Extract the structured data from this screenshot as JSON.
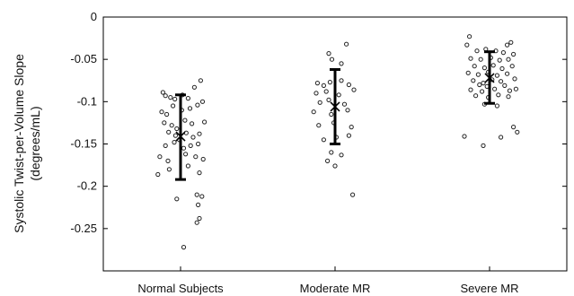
{
  "chart_data": {
    "type": "scatter",
    "title": "",
    "ylabel_line1": "Systolic Twist-per-Volume Slope",
    "ylabel_line2": "(degrees/mL)",
    "xlabel": "",
    "categories": [
      "Normal Subjects",
      "Moderate MR",
      "Severe MR"
    ],
    "ylim": [
      -0.3,
      0
    ],
    "yticks": [
      0,
      -0.05,
      -0.1,
      -0.15,
      -0.2,
      -0.25
    ],
    "ytick_labels": [
      "0",
      "-0.05",
      "-0.1",
      "-0.15",
      "-0.2",
      "-0.25"
    ],
    "grid": false,
    "groups": [
      {
        "category": "Normal Subjects",
        "mean": -0.141,
        "error_low": -0.192,
        "error_high": -0.092,
        "points": [
          [
            -0.28,
            -0.089
          ],
          [
            -0.24,
            -0.093
          ],
          [
            -0.16,
            -0.095
          ],
          [
            -0.09,
            -0.097
          ],
          [
            0.03,
            -0.092
          ],
          [
            0.12,
            -0.096
          ],
          [
            0.22,
            -0.083
          ],
          [
            0.32,
            -0.075
          ],
          [
            -0.3,
            -0.112
          ],
          [
            -0.22,
            -0.115
          ],
          [
            -0.12,
            -0.105
          ],
          [
            0.02,
            -0.11
          ],
          [
            0.15,
            -0.108
          ],
          [
            0.27,
            -0.104
          ],
          [
            0.35,
            -0.1
          ],
          [
            -0.26,
            -0.125
          ],
          [
            -0.14,
            -0.128
          ],
          [
            -0.06,
            -0.132
          ],
          [
            0.07,
            -0.122
          ],
          [
            0.18,
            -0.126
          ],
          [
            0.38,
            -0.124
          ],
          [
            -0.19,
            -0.136
          ],
          [
            -0.08,
            -0.14
          ],
          [
            -0.02,
            -0.145
          ],
          [
            0.09,
            -0.137
          ],
          [
            0.2,
            -0.142
          ],
          [
            0.3,
            -0.138
          ],
          [
            -0.24,
            -0.152
          ],
          [
            -0.1,
            -0.148
          ],
          [
            0.05,
            -0.155
          ],
          [
            0.16,
            -0.152
          ],
          [
            0.28,
            -0.15
          ],
          [
            -0.33,
            -0.165
          ],
          [
            -0.2,
            -0.17
          ],
          [
            0.08,
            -0.162
          ],
          [
            0.24,
            -0.165
          ],
          [
            0.36,
            -0.168
          ],
          [
            -0.36,
            -0.186
          ],
          [
            -0.18,
            -0.18
          ],
          [
            0.12,
            -0.176
          ],
          [
            0.3,
            -0.184
          ],
          [
            -0.06,
            -0.215
          ],
          [
            0.26,
            -0.21
          ],
          [
            0.34,
            -0.212
          ],
          [
            0.28,
            -0.222
          ],
          [
            0.3,
            -0.238
          ],
          [
            0.26,
            -0.243
          ],
          [
            0.05,
            -0.272
          ]
        ]
      },
      {
        "category": "Moderate MR",
        "mean": -0.106,
        "error_low": -0.15,
        "error_high": -0.062,
        "points": [
          [
            -0.1,
            -0.043
          ],
          [
            0.18,
            -0.032
          ],
          [
            -0.05,
            -0.05
          ],
          [
            0.1,
            -0.055
          ],
          [
            -0.28,
            -0.078
          ],
          [
            -0.18,
            -0.081
          ],
          [
            -0.08,
            -0.077
          ],
          [
            0.1,
            -0.075
          ],
          [
            0.22,
            -0.08
          ],
          [
            -0.3,
            -0.09
          ],
          [
            -0.14,
            -0.088
          ],
          [
            0.06,
            -0.092
          ],
          [
            0.3,
            -0.086
          ],
          [
            -0.24,
            -0.101
          ],
          [
            -0.1,
            -0.098
          ],
          [
            0.15,
            -0.103
          ],
          [
            -0.34,
            -0.112
          ],
          [
            -0.06,
            -0.115
          ],
          [
            0.2,
            -0.11
          ],
          [
            -0.26,
            -0.128
          ],
          [
            -0.02,
            -0.125
          ],
          [
            0.26,
            -0.13
          ],
          [
            -0.18,
            -0.145
          ],
          [
            0.02,
            -0.142
          ],
          [
            0.22,
            -0.14
          ],
          [
            -0.06,
            -0.16
          ],
          [
            0.1,
            -0.163
          ],
          [
            -0.12,
            -0.17
          ],
          [
            0.0,
            -0.176
          ],
          [
            0.28,
            -0.21
          ]
        ]
      },
      {
        "category": "Severe MR",
        "mean": -0.072,
        "error_low": -0.102,
        "error_high": -0.041,
        "points": [
          [
            -0.32,
            -0.023
          ],
          [
            0.34,
            -0.03
          ],
          [
            0.28,
            -0.033
          ],
          [
            -0.36,
            -0.033
          ],
          [
            -0.2,
            -0.04
          ],
          [
            -0.06,
            -0.038
          ],
          [
            0.1,
            -0.04
          ],
          [
            0.22,
            -0.042
          ],
          [
            0.38,
            -0.044
          ],
          [
            -0.3,
            -0.049
          ],
          [
            -0.14,
            -0.05
          ],
          [
            0.02,
            -0.048
          ],
          [
            0.16,
            -0.051
          ],
          [
            0.3,
            -0.05
          ],
          [
            -0.24,
            -0.058
          ],
          [
            -0.08,
            -0.06
          ],
          [
            0.06,
            -0.057
          ],
          [
            0.2,
            -0.061
          ],
          [
            0.36,
            -0.058
          ],
          [
            -0.34,
            -0.066
          ],
          [
            -0.18,
            -0.068
          ],
          [
            -0.02,
            -0.065
          ],
          [
            0.12,
            -0.069
          ],
          [
            0.28,
            -0.067
          ],
          [
            -0.26,
            -0.075
          ],
          [
            -0.1,
            -0.078
          ],
          [
            0.04,
            -0.074
          ],
          [
            0.18,
            -0.076
          ],
          [
            0.4,
            -0.073
          ],
          [
            -0.16,
            -0.08
          ],
          [
            -0.04,
            -0.082
          ],
          [
            0.24,
            -0.081
          ],
          [
            -0.3,
            -0.086
          ],
          [
            -0.12,
            -0.088
          ],
          [
            0.08,
            -0.085
          ],
          [
            0.32,
            -0.087
          ],
          [
            0.42,
            -0.085
          ],
          [
            -0.22,
            -0.093
          ],
          [
            -0.02,
            -0.095
          ],
          [
            0.14,
            -0.092
          ],
          [
            0.3,
            -0.094
          ],
          [
            -0.08,
            -0.103
          ],
          [
            0.12,
            -0.105
          ],
          [
            0.38,
            -0.13
          ],
          [
            0.44,
            -0.136
          ],
          [
            -0.4,
            -0.141
          ],
          [
            0.18,
            -0.142
          ],
          [
            -0.1,
            -0.152
          ]
        ]
      }
    ]
  }
}
